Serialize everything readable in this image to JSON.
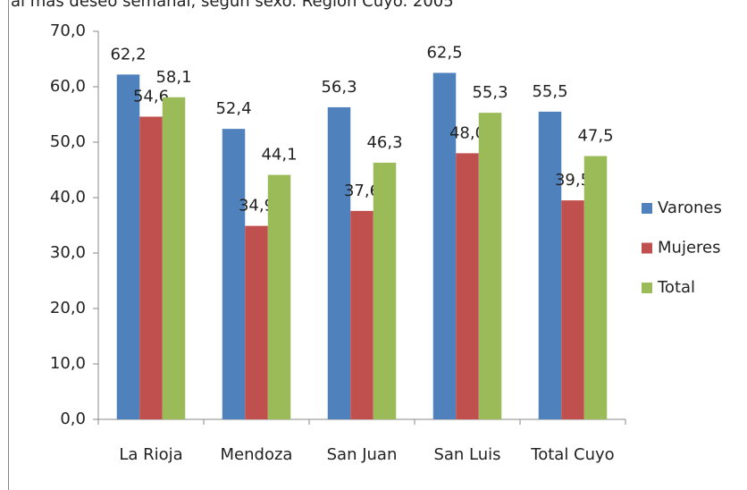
{
  "chart_data": {
    "type": "bar",
    "title": "al más deseo semanal, según sexo. Región Cuyo. 2005",
    "categories": [
      "La Rioja",
      "Mendoza",
      "San Juan",
      "San Luis",
      "Total Cuyo"
    ],
    "series": [
      {
        "name": "Varones",
        "color": "#4f81bd",
        "values": [
          62.2,
          52.4,
          56.3,
          62.5,
          55.5
        ],
        "value_labels": [
          "62,2",
          "52,4",
          "56,3",
          "62,5",
          "55,5"
        ]
      },
      {
        "name": "Mujeres",
        "color": "#c0504d",
        "values": [
          54.6,
          34.9,
          37.6,
          48.0,
          39.5
        ],
        "value_labels": [
          "54,6",
          "34,9",
          "37,6",
          "48,0",
          "39,5"
        ]
      },
      {
        "name": "Total",
        "color": "#9bbb59",
        "values": [
          58.1,
          44.1,
          46.3,
          55.3,
          47.5
        ],
        "value_labels": [
          "58,1",
          "44,1",
          "46,3",
          "55,3",
          "47,5"
        ]
      }
    ],
    "ylim": [
      0,
      70
    ],
    "yticks": [
      {
        "value": 0,
        "label": "0,0"
      },
      {
        "value": 10,
        "label": "10,0"
      },
      {
        "value": 20,
        "label": "20,0"
      },
      {
        "value": 30,
        "label": "30,0"
      },
      {
        "value": 40,
        "label": "40,0"
      },
      {
        "value": 50,
        "label": "50,0"
      },
      {
        "value": 60,
        "label": "60,0"
      },
      {
        "value": 70,
        "label": "70,0"
      }
    ],
    "legend": "right"
  }
}
